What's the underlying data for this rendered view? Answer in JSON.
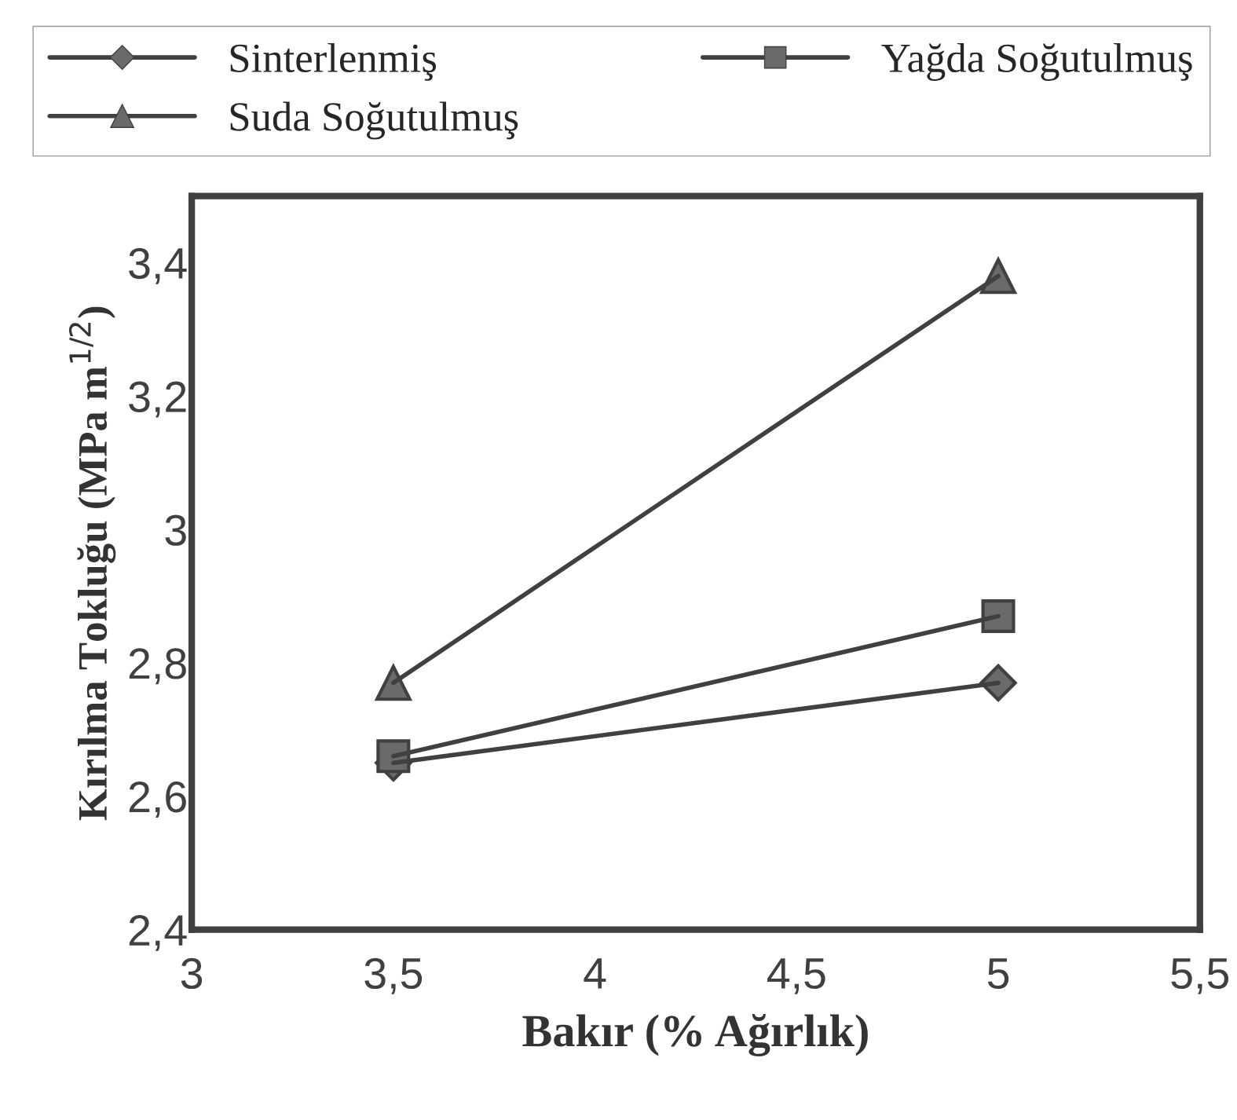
{
  "chart_data": {
    "type": "line",
    "xlabel": "Bakır (% Ağırlık)",
    "ylabel": "Kırılma Tokluğu (MPa m$^{1/2}$)",
    "series": [
      {
        "name": "Sinterlenmiş",
        "color": "#404040",
        "marker": "diamond",
        "values": [
          2.65,
          2.77
        ]
      },
      {
        "name": "Yağda Soğutulmuş",
        "color": "#404040",
        "marker": "square",
        "values": [
          2.66,
          2.87
        ]
      },
      {
        "name": "Suda Soğutulmuş",
        "color": "#404040",
        "marker": "triangle",
        "values": [
          2.77,
          3.38
        ]
      }
    ],
    "x": [
      3.5,
      5
    ],
    "xlim": [
      3,
      5.5
    ],
    "ylim": [
      2.4,
      3.5
    ],
    "xticks": [
      3,
      {
        "value": 3.5,
        "label": "3,5"
      },
      4,
      {
        "value": 4.5,
        "label": "4,5"
      },
      5,
      {
        "value": 5.5,
        "label": "5,5"
      }
    ],
    "yticks": [
      {
        "value": 2.4,
        "label": "2,4"
      },
      {
        "value": 2.6,
        "label": "2,6"
      },
      {
        "value": 2.8,
        "label": "2,8"
      },
      3,
      {
        "value": 3.2,
        "label": "3,2"
      },
      {
        "value": 3.4,
        "label": "3,4"
      }
    ],
    "grid": false,
    "legend": "top",
    "line_style": "solid"
  }
}
